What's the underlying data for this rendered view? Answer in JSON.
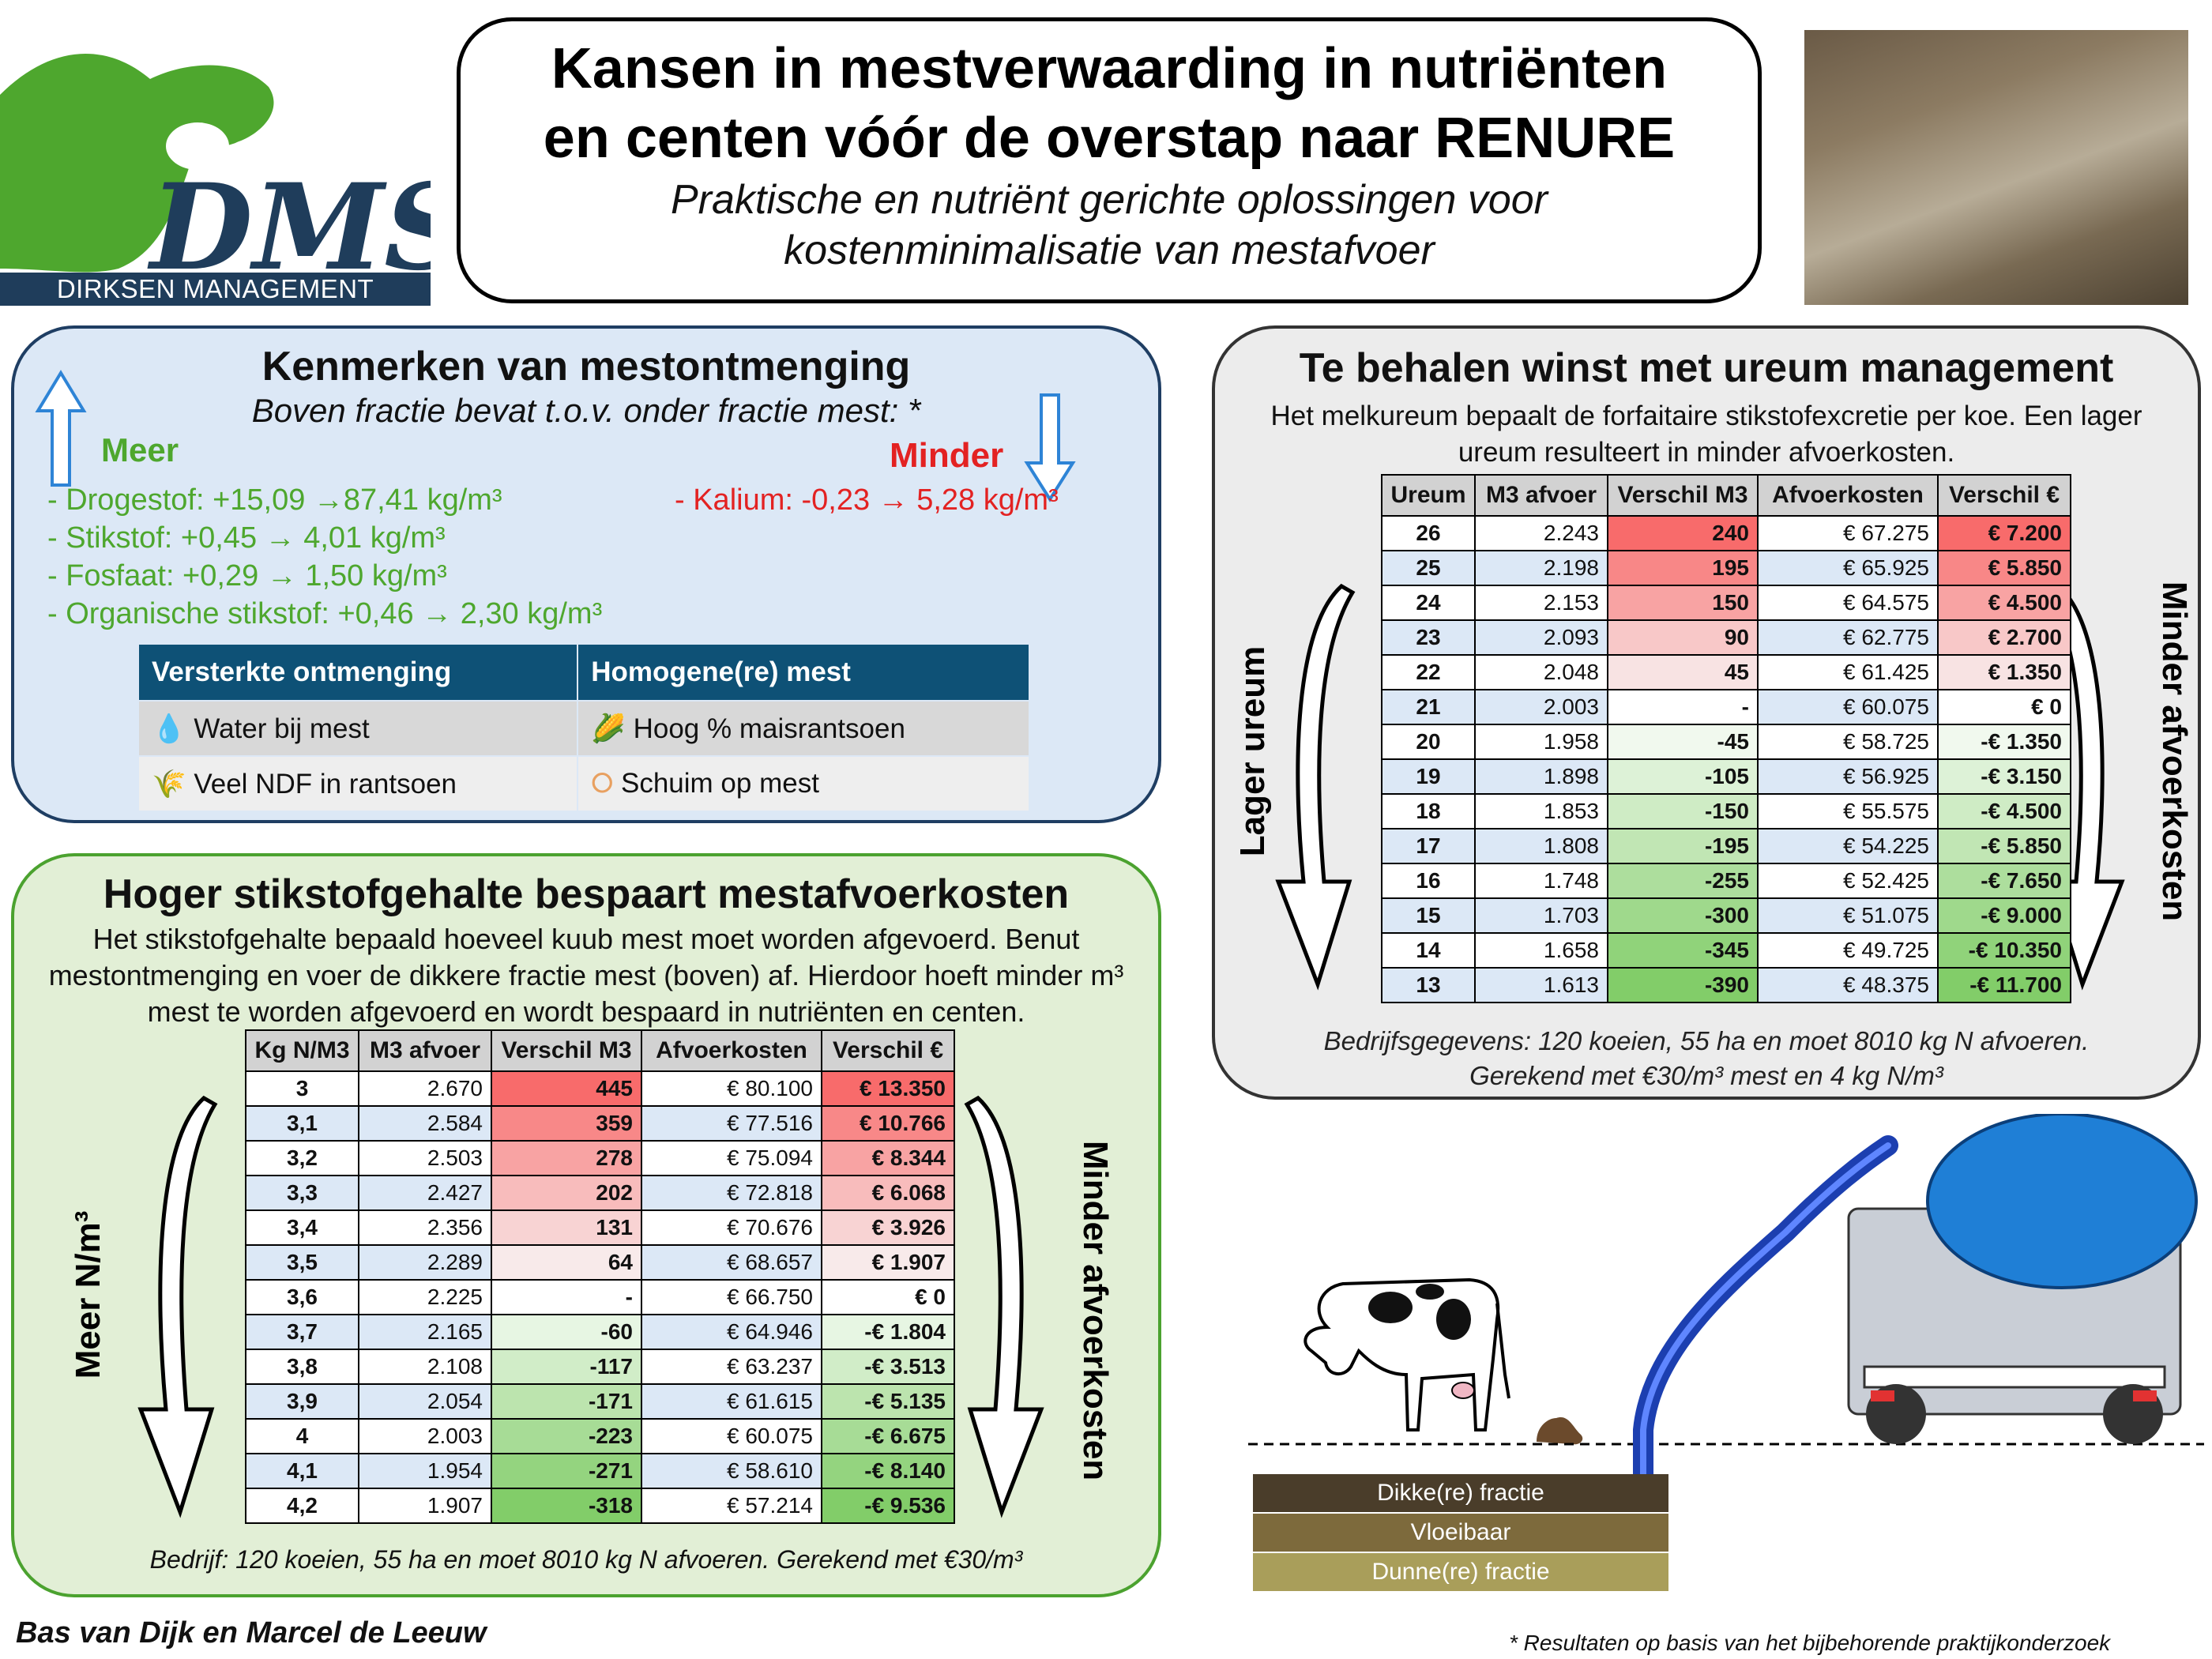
{
  "logo": {
    "letters": "DMS",
    "company": "DIRKSEN MANAGEMENT SUPPORT B.V."
  },
  "title": {
    "line1": "Kansen in mestverwaarding in nutriënten",
    "line2": "en centen vóór de overstap naar RENURE",
    "sub1": "Praktische en nutriënt gerichte oplossingen voor",
    "sub2": "kostenminimalisatie van mestafvoer"
  },
  "ontmenging": {
    "title": "Kenmerken van mestontmenging",
    "subtitle": "Boven fractie bevat t.o.v. onder fractie mest: *",
    "meer_label": "Meer",
    "minder_label": "Minder",
    "meer_items": [
      "- Drogestof: +15,09 →87,41 kg/m³",
      "- Stikstof: +0,45 → 4,01 kg/m³",
      "- Fosfaat: +0,29 → 1,50 kg/m³",
      "- Organische stikstof: +0,46 → 2,30 kg/m³"
    ],
    "minder_items": [
      "- Kalium: -0,23 → 5,28 kg/m³"
    ],
    "table_headers": [
      "Versterkte ontmenging",
      "Homogene(re) mest"
    ],
    "table_rows": [
      [
        "Water bij mest",
        "Hoog % maisrantsoen"
      ],
      [
        "Veel NDF in rantsoen",
        "Schuim op mest"
      ]
    ],
    "icons": [
      "water-drop-icon",
      "corn-icon",
      "wheat-icon",
      "foam-bubbles-icon"
    ]
  },
  "stikstof": {
    "title": "Hoger stikstofgehalte bespaart mestafvoerkosten",
    "text": "Het stikstofgehalte bepaald hoeveel kuub mest moet worden afgevoerd. Benut mestontmenging en voer de dikkere fractie mest (boven) af. Hierdoor hoeft minder m³ mest te worden afgevoerd en wordt bespaard in nutriënten en centen.",
    "left_label": "Meer N/m³",
    "right_label": "Minder afvoerkosten",
    "footer": "Bedrijf: 120 koeien, 55 ha en moet 8010 kg N afvoeren. Gerekend met €30/m³",
    "headers": [
      "Kg N/M3",
      "M3 afvoer",
      "Verschil M3",
      "Afvoerkosten",
      "Verschil €"
    ],
    "rows": [
      [
        "3",
        "2.670",
        "445",
        "€ 80.100",
        "€ 13.350"
      ],
      [
        "3,1",
        "2.584",
        "359",
        "€ 77.516",
        "€ 10.766"
      ],
      [
        "3,2",
        "2.503",
        "278",
        "€ 75.094",
        "€ 8.344"
      ],
      [
        "3,3",
        "2.427",
        "202",
        "€ 72.818",
        "€ 6.068"
      ],
      [
        "3,4",
        "2.356",
        "131",
        "€ 70.676",
        "€ 3.926"
      ],
      [
        "3,5",
        "2.289",
        "64",
        "€ 68.657",
        "€ 1.907"
      ],
      [
        "3,6",
        "2.225",
        "-",
        "€ 66.750",
        "€ 0"
      ],
      [
        "3,7",
        "2.165",
        "-60",
        "€ 64.946",
        "-€ 1.804"
      ],
      [
        "3,8",
        "2.108",
        "-117",
        "€ 63.237",
        "-€ 3.513"
      ],
      [
        "3,9",
        "2.054",
        "-171",
        "€ 61.615",
        "-€ 5.135"
      ],
      [
        "4",
        "2.003",
        "-223",
        "€ 60.075",
        "-€ 6.675"
      ],
      [
        "4,1",
        "1.954",
        "-271",
        "€ 58.610",
        "-€ 8.140"
      ],
      [
        "4,2",
        "1.907",
        "-318",
        "€ 57.214",
        "-€ 9.536"
      ]
    ]
  },
  "ureum": {
    "title": "Te behalen winst met ureum management",
    "text": "Het melkureum bepaalt de forfaitaire stikstofexcretie per koe. Een lager ureum resulteert in minder afvoerkosten.",
    "left_label": "Lager ureum",
    "right_label": "Minder afvoerkosten",
    "footer1": "Bedrijfsgegevens: 120 koeien, 55 ha en moet 8010 kg N afvoeren.",
    "footer2": "Gerekend met €30/m³ mest en 4 kg N/m³",
    "headers": [
      "Ureum",
      "M3 afvoer",
      "Verschil M3",
      "Afvoerkosten",
      "Verschil €"
    ],
    "rows": [
      [
        "26",
        "2.243",
        "240",
        "€ 67.275",
        "€ 7.200"
      ],
      [
        "25",
        "2.198",
        "195",
        "€ 65.925",
        "€ 5.850"
      ],
      [
        "24",
        "2.153",
        "150",
        "€ 64.575",
        "€ 4.500"
      ],
      [
        "23",
        "2.093",
        "90",
        "€ 62.775",
        "€ 2.700"
      ],
      [
        "22",
        "2.048",
        "45",
        "€ 61.425",
        "€ 1.350"
      ],
      [
        "21",
        "2.003",
        "-",
        "€ 60.075",
        "€ 0"
      ],
      [
        "20",
        "1.958",
        "-45",
        "€ 58.725",
        "-€ 1.350"
      ],
      [
        "19",
        "1.898",
        "-105",
        "€ 56.925",
        "-€ 3.150"
      ],
      [
        "18",
        "1.853",
        "-150",
        "€ 55.575",
        "-€ 4.500"
      ],
      [
        "17",
        "1.808",
        "-195",
        "€ 54.225",
        "-€ 5.850"
      ],
      [
        "16",
        "1.748",
        "-255",
        "€ 52.425",
        "-€ 7.650"
      ],
      [
        "15",
        "1.703",
        "-300",
        "€ 51.075",
        "-€ 9.000"
      ],
      [
        "14",
        "1.658",
        "-345",
        "€ 49.725",
        "-€ 10.350"
      ],
      [
        "13",
        "1.613",
        "-390",
        "€ 48.375",
        "-€ 11.700"
      ]
    ]
  },
  "illustration": {
    "layers": [
      "Dikke(re) fractie",
      "Vloeibaar",
      "Dunne(re) fractie"
    ],
    "layer_colors": [
      "#4a3d2a",
      "#7d6a3c",
      "#a99e5a"
    ]
  },
  "colors": {
    "positive": "#e32222",
    "negative": "#4ea72e",
    "header_blue": "#0e5176"
  },
  "authors": "Bas van Dijk en Marcel de Leeuw",
  "footnote": "* Resultaten op basis van het bijbehorende praktijkonderzoek"
}
